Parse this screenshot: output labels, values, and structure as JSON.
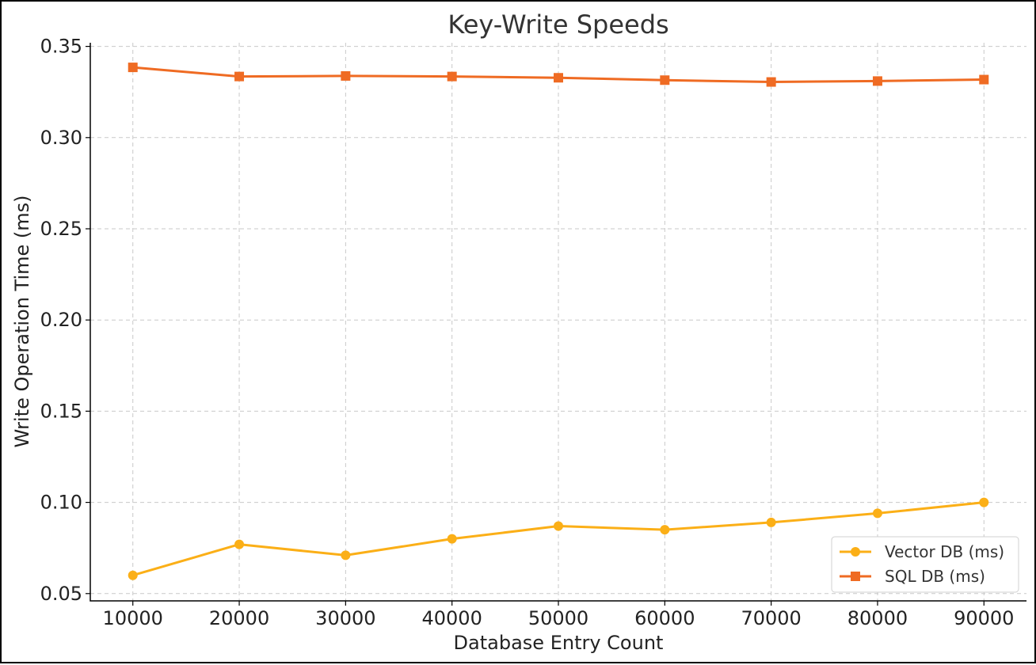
{
  "chart_data": {
    "type": "line",
    "title": "Key-Write Speeds",
    "xlabel": "Database Entry Count",
    "ylabel": "Write Operation Time (ms)",
    "x": [
      10000,
      20000,
      30000,
      40000,
      50000,
      60000,
      70000,
      80000,
      90000
    ],
    "x_tick_labels": [
      "10000",
      "20000",
      "30000",
      "40000",
      "50000",
      "60000",
      "70000",
      "80000",
      "90000"
    ],
    "y_ticks": [
      0.05,
      0.1,
      0.15,
      0.2,
      0.25,
      0.3,
      0.35
    ],
    "y_tick_labels": [
      "0.05",
      "0.10",
      "0.15",
      "0.20",
      "0.25",
      "0.30",
      "0.35"
    ],
    "xlim": [
      6000,
      94000
    ],
    "ylim": [
      0.046,
      0.352
    ],
    "grid": true,
    "legend_position": "bottom-right",
    "series": [
      {
        "name": "Vector DB (ms)",
        "color": "#fbaf17",
        "marker": "circle",
        "values": [
          0.06,
          0.077,
          0.071,
          0.08,
          0.087,
          0.085,
          0.089,
          0.094,
          0.1
        ]
      },
      {
        "name": "SQL DB (ms)",
        "color": "#ef6b23",
        "marker": "square",
        "values": [
          0.3385,
          0.3335,
          0.3338,
          0.3335,
          0.3328,
          0.3315,
          0.3305,
          0.331,
          0.3318
        ]
      }
    ]
  }
}
